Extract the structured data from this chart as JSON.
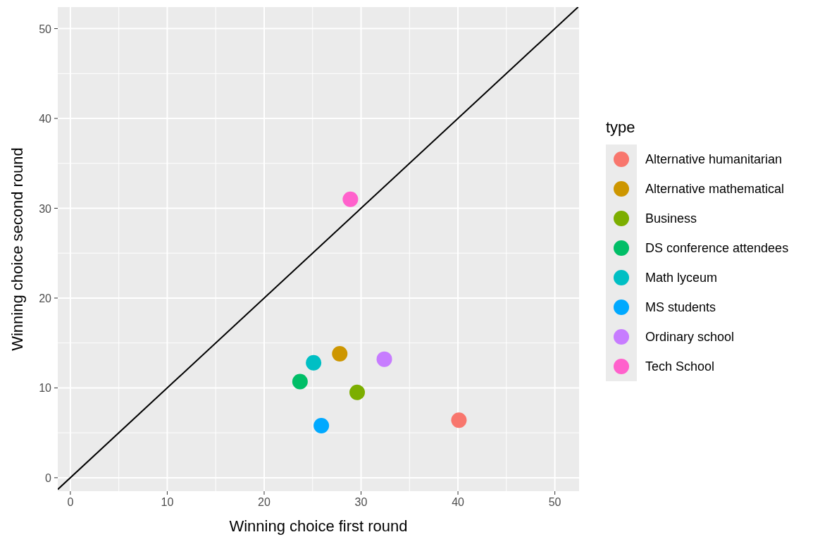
{
  "chart_data": {
    "type": "scatter",
    "xlabel": "Winning choice first round",
    "ylabel": "Winning choice second round",
    "legend_title": "type",
    "xlim": [
      -1.3,
      52.5
    ],
    "ylim": [
      -1.5,
      52.4
    ],
    "xticks": [
      0,
      10,
      20,
      30,
      40,
      50
    ],
    "yticks": [
      0,
      10,
      20,
      30,
      40,
      50
    ],
    "grid": true,
    "legend": "right",
    "series": [
      {
        "name": "Alternative humanitarian",
        "color": "#f8766d",
        "x": [
          40.1
        ],
        "values": [
          6.4
        ],
        "marker": "circle"
      },
      {
        "name": "Alternative mathematical",
        "color": "#cd9600",
        "x": [
          27.8
        ],
        "values": [
          13.8
        ],
        "marker": "circle"
      },
      {
        "name": "Business",
        "color": "#7cae00",
        "x": [
          29.6
        ],
        "values": [
          9.5
        ],
        "marker": "circle"
      },
      {
        "name": "DS conference attendees",
        "color": "#00be67",
        "x": [
          23.7
        ],
        "values": [
          10.7
        ],
        "marker": "circle"
      },
      {
        "name": "Math lyceum",
        "color": "#00bfc4",
        "x": [
          25.1
        ],
        "values": [
          12.8
        ],
        "marker": "circle"
      },
      {
        "name": "MS students",
        "color": "#00a9ff",
        "x": [
          25.9
        ],
        "values": [
          5.8
        ],
        "marker": "circle"
      },
      {
        "name": "Ordinary school",
        "color": "#c77cff",
        "x": [
          32.4
        ],
        "values": [
          13.2
        ],
        "marker": "circle"
      },
      {
        "name": "Tech School",
        "color": "#ff61cc",
        "x": [
          28.9
        ],
        "values": [
          31.0
        ],
        "marker": "circle"
      },
      {
        "type": "line",
        "marker": "none",
        "color": "#000000",
        "x": [
          -1.3,
          52.4
        ],
        "values": [
          -1.3,
          52.4
        ]
      }
    ]
  }
}
